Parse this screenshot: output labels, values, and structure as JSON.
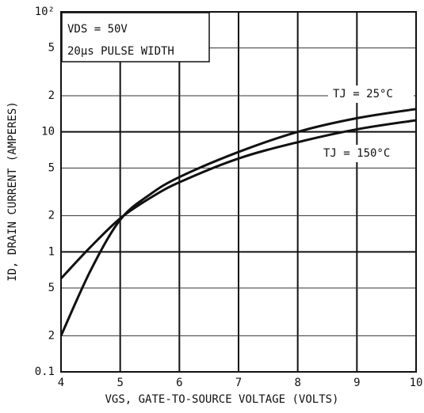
{
  "chart_data": {
    "type": "line",
    "x_label": "VGS, GATE-TO-SOURCE VOLTAGE (VOLTS)",
    "y_label": "ID, DRAIN CURRENT (AMPERES)",
    "annotations": [
      "VDS = 50V",
      "20μs PULSE WIDTH"
    ],
    "x": [
      4,
      4.5,
      5,
      5.5,
      6,
      7,
      8,
      9,
      10
    ],
    "series": [
      {
        "name": "TJ = 25°C",
        "color": "#111111",
        "values": [
          0.2,
          0.7,
          1.85,
          3.0,
          4.2,
          6.8,
          10,
          13,
          15.5
        ]
      },
      {
        "name": "TJ = 150°C",
        "color": "#111111",
        "values": [
          0.6,
          1.1,
          1.9,
          2.8,
          3.8,
          6.0,
          8.2,
          10.5,
          12.5
        ]
      }
    ],
    "xlim": [
      4,
      10
    ],
    "xticks": [
      4,
      5,
      6,
      7,
      8,
      9,
      10
    ],
    "ylim": [
      0.1,
      100
    ],
    "log_y": true,
    "yticks": [
      0.1,
      {
        "value": 0.2,
        "label": "2"
      },
      {
        "value": 0.5,
        "label": "5"
      },
      1,
      2,
      5,
      10,
      {
        "value": 20,
        "label": "2"
      },
      {
        "value": 50,
        "label": "5"
      },
      {
        "value": 100,
        "label": "10²"
      }
    ],
    "grid": true
  }
}
